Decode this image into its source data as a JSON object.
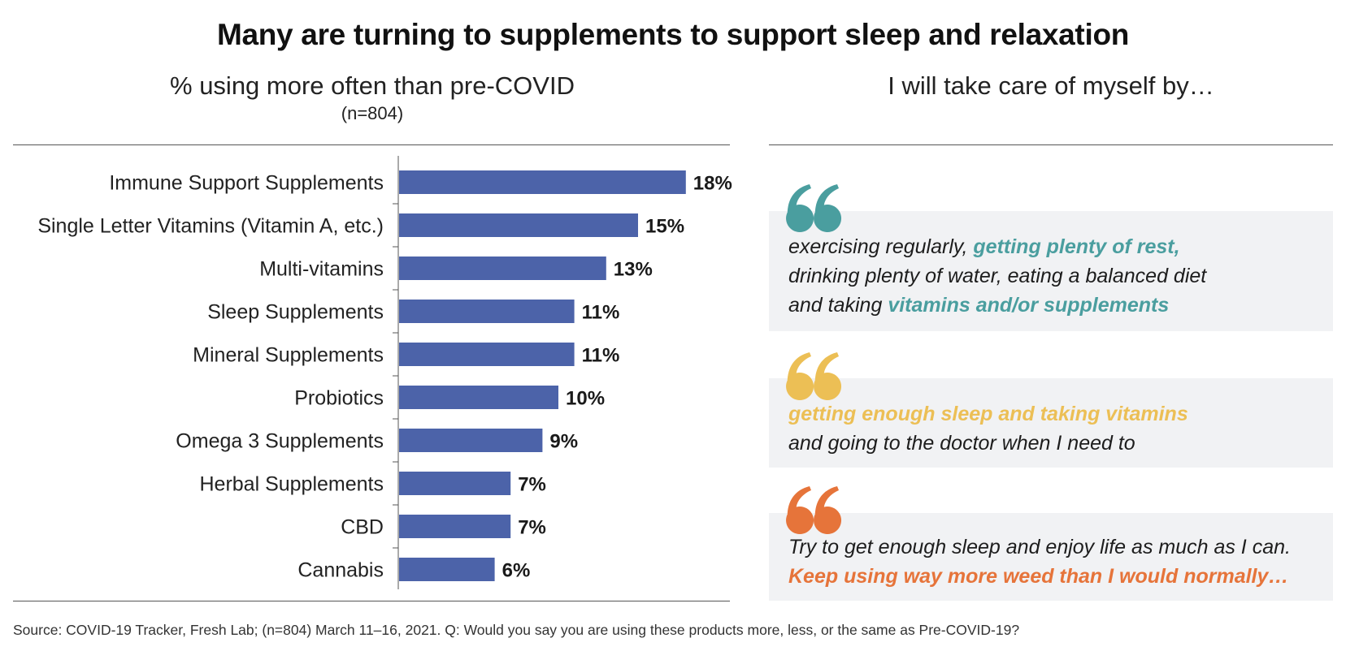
{
  "title": "Many are turning to supplements to support sleep and relaxation",
  "left_panel": {
    "heading": "% using more often than pre-COVID",
    "subheading": "(n=804)"
  },
  "right_panel": {
    "heading": "I will take care of myself by…",
    "quotes": [
      {
        "color": "#4a9e9f",
        "lines": [
          [
            {
              "text": "exercising regularly, ",
              "hl": false
            },
            {
              "text": "getting plenty of rest,",
              "hl": true
            }
          ],
          [
            {
              "text": "drinking plenty of water, eating a balanced diet",
              "hl": false
            }
          ],
          [
            {
              "text": "and taking ",
              "hl": false
            },
            {
              "text": "vitamins and/or supplements",
              "hl": true
            }
          ]
        ]
      },
      {
        "color": "#ecbf55",
        "lines": [
          [
            {
              "text": "getting enough sleep and taking vitamins",
              "hl": true
            }
          ],
          [
            {
              "text": "and going to the doctor when I need to",
              "hl": false
            }
          ]
        ]
      },
      {
        "color": "#e6743a",
        "lines": [
          [
            {
              "text": "Try to get enough sleep and enjoy life as much as I can.",
              "hl": false
            }
          ],
          [
            {
              "text": "Keep using way more weed than I would normally…",
              "hl": true
            }
          ]
        ]
      }
    ]
  },
  "chart_data": {
    "type": "bar",
    "orientation": "horizontal",
    "categories": [
      "Immune Support Supplements",
      "Single Letter Vitamins (Vitamin A, etc.)",
      "Multi-vitamins",
      "Sleep Supplements",
      "Mineral Supplements",
      "Probiotics",
      "Omega 3 Supplements",
      "Herbal Supplements",
      "CBD",
      "Cannabis"
    ],
    "values": [
      18,
      15,
      13,
      11,
      11,
      10,
      9,
      7,
      7,
      6
    ],
    "data_labels": [
      "18%",
      "15%",
      "13%",
      "11%",
      "11%",
      "10%",
      "9%",
      "7%",
      "7%",
      "6%"
    ],
    "bar_color": "#4c63a9",
    "xlim": [
      0,
      20
    ],
    "grid": false,
    "legend": "none"
  },
  "source": "Source: COVID-19 Tracker, Fresh Lab; (n=804) March 11–16, 2021. Q: Would you say you are using these products more, less, or the same as Pre-COVID-19?"
}
